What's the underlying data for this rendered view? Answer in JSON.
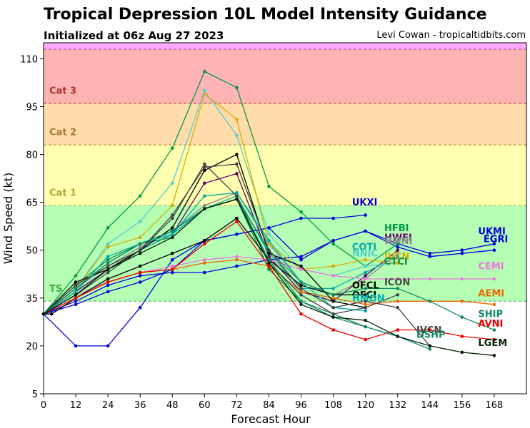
{
  "header": {
    "title": "Tropical Depression 10L Model Intensity Guidance",
    "init": "Initialized at 06z Aug 27 2023",
    "credit": "Levi Cowan - tropicaltidbits.com"
  },
  "chart_data": {
    "type": "line",
    "title": "Tropical Depression 10L Model Intensity Guidance",
    "subtitle": "Initialized at 06z Aug 27 2023",
    "xlabel": "Forecast Hour",
    "ylabel": "Wind Speed (kt)",
    "xlim": [
      0,
      180
    ],
    "ylim": [
      5,
      115
    ],
    "xticks": [
      0,
      12,
      24,
      36,
      48,
      60,
      72,
      84,
      96,
      108,
      120,
      132,
      144,
      156,
      168
    ],
    "yticks": [
      5,
      20,
      35,
      50,
      65,
      80,
      95,
      110
    ],
    "grid": false,
    "bands": [
      {
        "label": "TS",
        "from": 34,
        "to": 64,
        "color": "#b4ffb4",
        "label_color": "#44aa44",
        "label_value": 37
      },
      {
        "label": "Cat 1",
        "from": 64,
        "to": 83,
        "color": "#ffffb0",
        "label_color": "#aaaa33",
        "label_value": 67
      },
      {
        "label": "Cat 2",
        "from": 83,
        "to": 96,
        "color": "#ffdcaa",
        "label_color": "#aa7733",
        "label_value": 86
      },
      {
        "label": "Cat 3",
        "from": 96,
        "to": 113,
        "color": "#ffb4b4",
        "label_color": "#aa3333",
        "label_value": 99
      },
      {
        "label": "",
        "from": 113,
        "to": 115,
        "color": "#ffaaff",
        "label_color": "#aa33aa",
        "label_value": 114
      }
    ],
    "series": [
      {
        "name": "UKXI",
        "color": "#0000dd",
        "x": [
          0,
          12,
          24,
          36,
          48,
          60,
          72,
          84,
          96,
          108,
          120
        ],
        "y": [
          30,
          20,
          20,
          32,
          47,
          53,
          55,
          57,
          60,
          60,
          61
        ],
        "label_x": 115,
        "label_y": 64
      },
      {
        "label": "",
        "name": "UKMI",
        "color": "#0000dd",
        "x": [
          0,
          12,
          24,
          36,
          48,
          60,
          72,
          84,
          96,
          108,
          120,
          132,
          144,
          156,
          168
        ],
        "y": [
          30,
          34,
          39,
          42,
          43,
          43,
          45,
          47,
          48,
          53,
          56,
          52,
          49,
          50,
          52
        ],
        "label_x": 162,
        "label_y": 55
      },
      {
        "name": "EGRI",
        "color": "#0000dd",
        "x": [
          0,
          12,
          24,
          36,
          48,
          60,
          72,
          84,
          96,
          108,
          120,
          132,
          144,
          156,
          168
        ],
        "y": [
          30,
          33,
          37,
          40,
          44,
          53,
          55,
          57,
          47,
          53,
          56,
          51,
          48,
          49,
          50
        ],
        "label_x": 164,
        "label_y": 52
      },
      {
        "name": "HFBI",
        "color": "#009944",
        "x": [
          0,
          12,
          24,
          36,
          48,
          60,
          72,
          84,
          96,
          108,
          120,
          132
        ],
        "y": [
          30,
          42,
          57,
          67,
          82,
          106,
          101,
          70,
          62,
          52,
          45,
          52
        ],
        "label_x": 127,
        "label_y": 56
      },
      {
        "name": "HWFI",
        "color": "#660066",
        "x": [
          0,
          12,
          24,
          36,
          48,
          60,
          72,
          84,
          96,
          108,
          120,
          132
        ],
        "y": [
          30,
          37,
          44,
          50,
          55,
          71,
          74,
          48,
          37,
          34,
          42,
          50
        ],
        "label_x": 127,
        "label_y": 53
      },
      {
        "name": "HMNI",
        "color": "#888888",
        "x": [
          0,
          12,
          24,
          36,
          48,
          60,
          72,
          84,
          96,
          108,
          120,
          132
        ],
        "y": [
          30,
          38,
          45,
          51,
          56,
          64,
          68,
          52,
          40,
          36,
          41,
          49
        ],
        "label_x": 127,
        "label_y": 52
      },
      {
        "name": "COTI",
        "color": "#00aaaa",
        "x": [
          0,
          12,
          24,
          36,
          48,
          60,
          72,
          84,
          96,
          108,
          120,
          132
        ],
        "y": [
          30,
          36,
          44,
          50,
          55,
          63,
          67,
          49,
          38,
          38,
          43,
          48
        ],
        "label_x": 115,
        "label_y": 50
      },
      {
        "name": "NNIC",
        "color": "#55cccc",
        "x": [
          0,
          12,
          24,
          36,
          48,
          60,
          72,
          84,
          96,
          108,
          120,
          132
        ],
        "y": [
          30,
          38,
          52,
          59,
          71,
          100,
          86,
          55,
          44,
          42,
          45,
          46
        ],
        "label_x": 115,
        "label_y": 48
      },
      {
        "name": "CTCI",
        "color": "#118844",
        "x": [
          0,
          12,
          24,
          36,
          48,
          60,
          72,
          84,
          96,
          108,
          120,
          132
        ],
        "y": [
          30,
          39,
          47,
          52,
          54,
          63,
          66,
          44,
          34,
          30,
          26,
          23
        ],
        "label_x": 127,
        "label_y": 46
      },
      {
        "name": "IVCN",
        "color": "#ddaa00",
        "x": [
          0,
          12,
          24,
          36,
          48,
          60,
          72,
          84,
          96,
          108,
          120,
          132
        ],
        "y": [
          30,
          38,
          51,
          54,
          64,
          99,
          91,
          52,
          44,
          45,
          47,
          46
        ],
        "label_x": 127,
        "label_y": 47
      },
      {
        "name": "CEMI",
        "color": "#ee77dd",
        "x": [
          0,
          12,
          24,
          36,
          48,
          60,
          72,
          84,
          96,
          108,
          120,
          132,
          144,
          156,
          168
        ],
        "y": [
          30,
          36,
          40,
          43,
          45,
          47,
          48,
          47,
          44,
          42,
          41,
          41,
          41,
          41,
          41
        ],
        "label_x": 162,
        "label_y": 44
      },
      {
        "name": "AEMI",
        "color": "#ee6600",
        "x": [
          0,
          12,
          24,
          36,
          48,
          60,
          72,
          84,
          96,
          108,
          120,
          132,
          144,
          156,
          168
        ],
        "y": [
          30,
          35,
          40,
          43,
          44,
          46,
          47,
          45,
          37,
          35,
          33,
          34,
          34,
          34,
          33
        ],
        "label_x": 162,
        "label_y": 36
      },
      {
        "name": "OFCL",
        "color": "#000000",
        "x": [
          0,
          12,
          24,
          36,
          48,
          60,
          72,
          84,
          96,
          108,
          120
        ],
        "y": [
          30,
          40,
          44,
          50,
          57,
          75,
          80,
          49,
          45,
          34,
          32
        ],
        "label_x": 115,
        "label_y": 38
      },
      {
        "name": "OFCI",
        "color": "#000000",
        "x": [
          0,
          3,
          12,
          24,
          36,
          48,
          60,
          72,
          84,
          96,
          108,
          120
        ],
        "y": [
          30,
          30,
          35,
          41,
          45,
          49,
          53,
          60,
          47,
          39,
          36,
          36
        ],
        "label_x": 115,
        "label_y": 35
      },
      {
        "name": "HMON",
        "color": "#00aaaa",
        "x": [
          0,
          12,
          24,
          36,
          48,
          60,
          72,
          84,
          96,
          108,
          120
        ],
        "y": [
          30,
          37,
          48,
          52,
          55,
          67,
          68,
          53,
          40,
          32,
          31
        ],
        "label_x": 115,
        "label_y": 34
      },
      {
        "name": "ICON",
        "color": "#444444",
        "x": [
          0,
          12,
          24,
          36,
          48,
          60,
          72,
          84,
          96,
          108,
          120,
          132
        ],
        "y": [
          30,
          36,
          43,
          50,
          60,
          77,
          67,
          46,
          36,
          30,
          32,
          36
        ],
        "label_x": 127,
        "label_y": 39
      },
      {
        "name": "SHIP",
        "color": "#118866",
        "x": [
          0,
          12,
          24,
          36,
          48,
          60,
          72,
          84,
          96,
          108,
          120,
          132,
          144,
          156,
          168
        ],
        "y": [
          30,
          38,
          46,
          52,
          56,
          63,
          66,
          50,
          40,
          36,
          38,
          38,
          34,
          29,
          25
        ],
        "label_x": 162,
        "label_y": 28
      },
      {
        "name": "AVNI",
        "color": "#ee0000",
        "x": [
          0,
          12,
          24,
          36,
          48,
          60,
          72,
          84,
          96,
          108,
          120,
          132,
          144,
          156,
          168
        ],
        "y": [
          30,
          35,
          40,
          43,
          44,
          52,
          59,
          45,
          30,
          25,
          22,
          25,
          25,
          23,
          22
        ],
        "label_x": 162,
        "label_y": 25
      },
      {
        "name": "IVCN2",
        "color": "#444444",
        "x": [
          0,
          12,
          24,
          36,
          48,
          60,
          72,
          84,
          96,
          108,
          120,
          132,
          144
        ],
        "y": [
          30,
          39,
          45,
          50,
          61,
          76,
          77,
          50,
          38,
          32,
          34,
          32,
          20
        ],
        "label_x": 139,
        "label_y": 23
      },
      {
        "name": "DSHP",
        "color": "#118866",
        "x": [
          0,
          12,
          24,
          36,
          48,
          60,
          72,
          84,
          96,
          108,
          120,
          132,
          144
        ],
        "y": [
          30,
          38,
          46,
          52,
          56,
          63,
          66,
          47,
          34,
          29,
          26,
          23,
          19
        ],
        "label_x": 139,
        "label_y": 22
      },
      {
        "name": "LGEM",
        "color": "#002200",
        "x": [
          0,
          12,
          24,
          36,
          48,
          60,
          72,
          84,
          96,
          108,
          120,
          132,
          144,
          156,
          168
        ],
        "y": [
          30,
          36,
          44,
          49,
          54,
          63,
          66,
          46,
          33,
          29,
          28,
          23,
          20,
          18,
          17
        ],
        "label_x": 162,
        "label_y": 20
      }
    ],
    "series_labels": [
      {
        "text": "UKXI",
        "color": "#0000dd",
        "x": 115,
        "y": 64
      },
      {
        "text": "UKMI",
        "color": "#0000dd",
        "x": 162,
        "y": 55
      },
      {
        "text": "EGRI",
        "color": "#0000dd",
        "x": 164,
        "y": 52.5
      },
      {
        "text": "HFBI",
        "color": "#009944",
        "x": 127,
        "y": 56
      },
      {
        "text": "HWFI",
        "color": "#660066",
        "x": 127,
        "y": 53
      },
      {
        "text": "HMNI",
        "color": "#888888",
        "x": 127,
        "y": 52
      },
      {
        "text": "COTI",
        "color": "#00aaaa",
        "x": 115,
        "y": 50
      },
      {
        "text": "NNIC",
        "color": "#55cccc",
        "x": 115,
        "y": 48
      },
      {
        "text": "IVCN",
        "color": "#ddaa00",
        "x": 127,
        "y": 47
      },
      {
        "text": "CTCI",
        "color": "#118844",
        "x": 127,
        "y": 45.5
      },
      {
        "text": "CEMI",
        "color": "#ee77dd",
        "x": 162,
        "y": 44
      },
      {
        "text": "ICON",
        "color": "#444444",
        "x": 127,
        "y": 39
      },
      {
        "text": "OFCL",
        "color": "#000000",
        "x": 115,
        "y": 38
      },
      {
        "text": "AEMI",
        "color": "#ee6600",
        "x": 162,
        "y": 35.5
      },
      {
        "text": "OFCI",
        "color": "#000000",
        "x": 115,
        "y": 35
      },
      {
        "text": "HMON",
        "color": "#00aaaa",
        "x": 115,
        "y": 34
      },
      {
        "text": "SHIP",
        "color": "#118866",
        "x": 162,
        "y": 29
      },
      {
        "text": "AVNI",
        "color": "#ee0000",
        "x": 162,
        "y": 26
      },
      {
        "text": "IVCN",
        "color": "#444444",
        "x": 139,
        "y": 24
      },
      {
        "text": "DSHP",
        "color": "#118866",
        "x": 139,
        "y": 22.5
      },
      {
        "text": "LGEM",
        "color": "#002200",
        "x": 162,
        "y": 20
      }
    ]
  }
}
